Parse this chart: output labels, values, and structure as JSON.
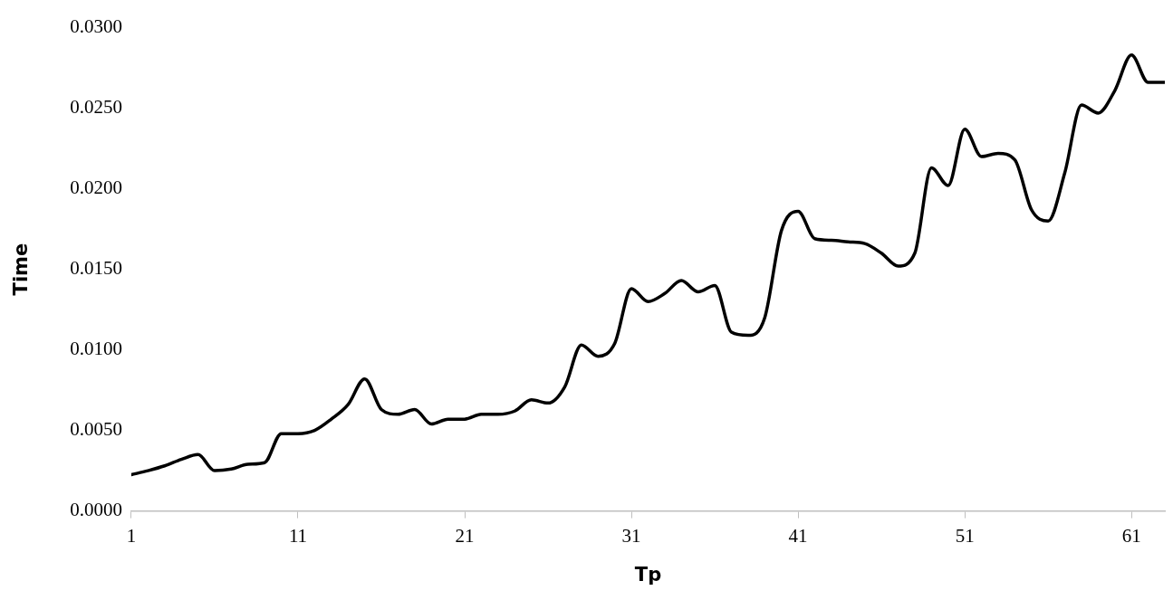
{
  "chart_data": {
    "type": "line",
    "xlabel": "Tp",
    "ylabel": "Time",
    "x": [
      1,
      2,
      3,
      4,
      5,
      6,
      7,
      8,
      9,
      10,
      11,
      12,
      13,
      14,
      15,
      16,
      17,
      18,
      19,
      20,
      21,
      22,
      23,
      24,
      25,
      26,
      27,
      28,
      29,
      30,
      31,
      32,
      33,
      34,
      35,
      36,
      37,
      38,
      39,
      40,
      41,
      42,
      43,
      44,
      45,
      46,
      47,
      48,
      49,
      50,
      51,
      52,
      53,
      54,
      55,
      56,
      57,
      58,
      59,
      60,
      61,
      62,
      63
    ],
    "series": [
      {
        "color": "#000000",
        "values": [
          0.00225,
          0.0025,
          0.0028,
          0.0032,
          0.0035,
          0.0025,
          0.0026,
          0.0029,
          0.003,
          0.0048,
          0.0048,
          0.005,
          0.0057,
          0.0066,
          0.0082,
          0.0063,
          0.006,
          0.0063,
          0.0054,
          0.0057,
          0.0057,
          0.006,
          0.006,
          0.0062,
          0.0069,
          0.0067,
          0.0077,
          0.0103,
          0.0096,
          0.0104,
          0.0138,
          0.013,
          0.0135,
          0.0143,
          0.0136,
          0.014,
          0.0111,
          0.0109,
          0.012,
          0.0174,
          0.0186,
          0.0169,
          0.0168,
          0.0167,
          0.0166,
          0.016,
          0.0152,
          0.016,
          0.0213,
          0.0202,
          0.0237,
          0.022,
          0.0222,
          0.0218,
          0.0187,
          0.018,
          0.021,
          0.0252,
          0.0247,
          0.0261,
          0.0283,
          0.0266,
          0.0266
        ]
      }
    ],
    "xlim": [
      1,
      63
    ],
    "xticks": [
      1,
      11,
      21,
      31,
      41,
      51,
      61
    ],
    "ylim": [
      0,
      0.03
    ],
    "yticks": [
      {
        "value": 0,
        "label": "0.0000"
      },
      {
        "value": 0.005,
        "label": "0.0050"
      },
      {
        "value": 0.01,
        "label": "0.0100"
      },
      {
        "value": 0.015,
        "label": "0.0150"
      },
      {
        "value": 0.02,
        "label": "0.0200"
      },
      {
        "value": 0.025,
        "label": "0.0250"
      },
      {
        "value": 0.03,
        "label": "0.0300"
      }
    ],
    "grid": false,
    "legend": false,
    "marker": "none",
    "line_style": "solid"
  }
}
